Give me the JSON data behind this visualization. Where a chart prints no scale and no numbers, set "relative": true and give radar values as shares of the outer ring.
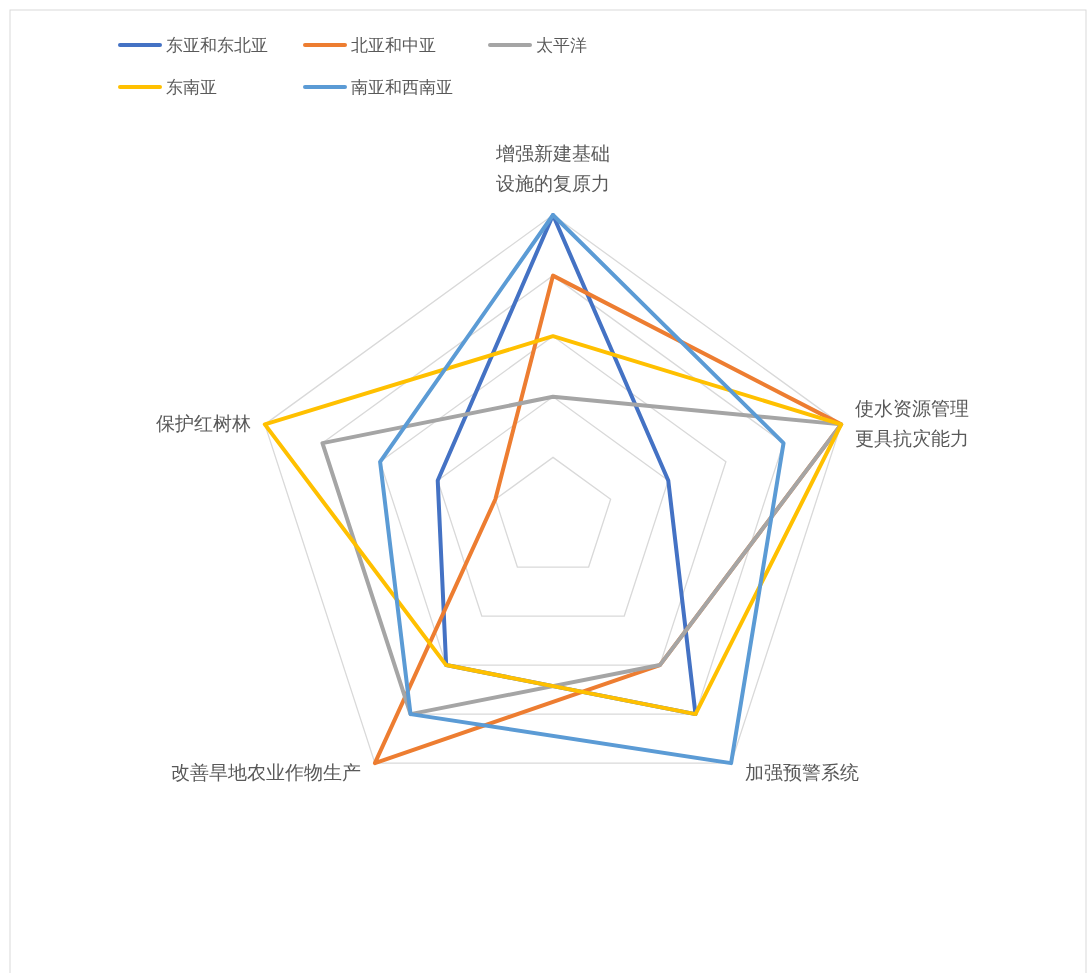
{
  "chart_data": {
    "type": "radar",
    "relative": true,
    "grid": true,
    "legend": "top left",
    "marker": "none",
    "categories": [
      "增强新建基础设施的复原力",
      "使水资源管理更具抗灾能力",
      "加强预警系统",
      "改善旱地农业作物生产",
      "保护红树林"
    ],
    "series": [
      {
        "name": "东亚和东北亚",
        "color": "#4472c4",
        "values": [
          1.0,
          0.4,
          0.8,
          0.6,
          0.4
        ]
      },
      {
        "name": "北亚和中亚",
        "color": "#ed7d31",
        "values": [
          0.8,
          1.0,
          0.6,
          1.0,
          0.2
        ]
      },
      {
        "name": "太平洋",
        "color": "#a5a5a5",
        "values": [
          0.4,
          1.0,
          0.6,
          0.8,
          0.8
        ]
      },
      {
        "name": "东南亚",
        "color": "#ffc000",
        "values": [
          0.6,
          1.0,
          0.8,
          0.6,
          1.0
        ]
      },
      {
        "name": "南亚和西南亚",
        "color": "#5b9bd5",
        "values": [
          1.0,
          0.8,
          1.0,
          0.8,
          0.6
        ]
      }
    ]
  }
}
